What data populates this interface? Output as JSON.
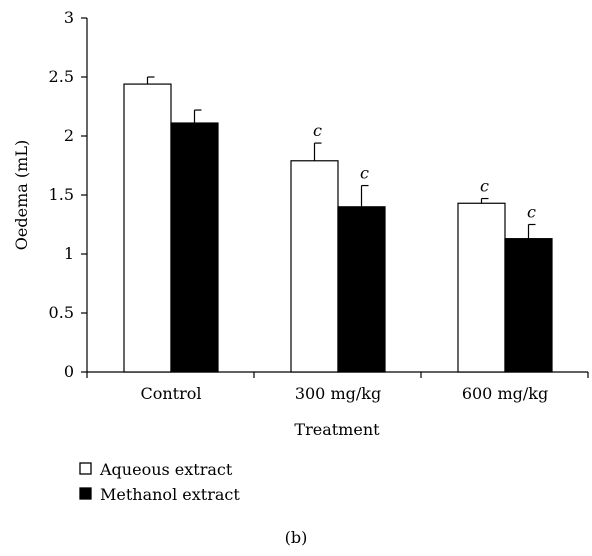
{
  "chart_data": {
    "type": "bar",
    "xlabel": "Treatment",
    "ylabel": "Oedema (mL)",
    "ylim": [
      0,
      3
    ],
    "yticks": [
      "0",
      "0.5",
      "1",
      "1.5",
      "2",
      "2.5",
      "3"
    ],
    "categories": [
      "Control",
      "300 mg/kg",
      "600 mg/kg"
    ],
    "series": [
      {
        "name": "Aqueous extract",
        "fill": "#ffffff",
        "values": [
          2.44,
          1.79,
          1.43
        ],
        "errors": [
          0.06,
          0.15,
          0.04
        ],
        "annotations": [
          "",
          "c",
          "c"
        ]
      },
      {
        "name": "Methanol extract",
        "fill": "#000000",
        "values": [
          2.11,
          1.4,
          1.13
        ],
        "errors": [
          0.11,
          0.18,
          0.12
        ],
        "annotations": [
          "",
          "c",
          "c"
        ]
      }
    ],
    "legend_position": "bottom-left",
    "grid": false,
    "panel_label": "(b)"
  }
}
